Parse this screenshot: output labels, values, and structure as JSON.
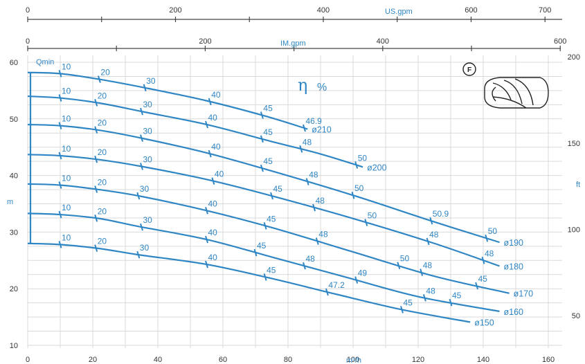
{
  "chart_data": {
    "type": "line",
    "xlabel": "m³/h",
    "ylabel": "m",
    "xlim": [
      0,
      160
    ],
    "ylim": [
      10,
      60
    ],
    "x_ticks": [
      0,
      20,
      40,
      60,
      80,
      100,
      120,
      140,
      160
    ],
    "y_ticks": [
      10,
      20,
      30,
      40,
      50,
      60
    ],
    "top_axis_usgpm": {
      "label": "US.gpm",
      "ticks": [
        "0",
        "200",
        "400",
        "600",
        "700"
      ]
    },
    "top_axis_imgpm": {
      "label": "IM.gpm",
      "ticks": [
        "0",
        "200",
        "400",
        "600"
      ]
    },
    "right_axis_ft": {
      "label": "ft",
      "ticks": [
        "50",
        "100",
        "150",
        "200"
      ]
    },
    "min_flow_label": "Qmin",
    "efficiency_label": "η",
    "efficiency_unit": "%",
    "pump_badge": "F",
    "grid": true,
    "series": [
      {
        "name": "ø210",
        "points": [
          [
            0,
            58.2
          ],
          [
            10,
            58.0
          ],
          [
            22,
            57.0
          ],
          [
            36,
            55.5
          ],
          [
            55,
            53.2
          ],
          [
            73,
            50.5
          ],
          [
            86,
            48.2
          ]
        ],
        "efficiency_marks": [
          [
            10,
            "10"
          ],
          [
            22,
            "20"
          ],
          [
            36,
            "30"
          ],
          [
            56,
            "40"
          ],
          [
            72,
            "45"
          ],
          [
            85,
            "46.9"
          ]
        ]
      },
      {
        "name": "ø200",
        "points": [
          [
            0,
            54.0
          ],
          [
            10,
            53.7
          ],
          [
            22,
            52.8
          ],
          [
            36,
            51.2
          ],
          [
            55,
            49.0
          ],
          [
            75,
            46.0
          ],
          [
            90,
            43.8
          ],
          [
            103,
            41.5
          ]
        ],
        "efficiency_marks": [
          [
            10,
            "10"
          ],
          [
            21,
            "20"
          ],
          [
            35,
            "30"
          ],
          [
            55,
            "40"
          ],
          [
            72,
            "45"
          ],
          [
            84,
            "48"
          ],
          [
            101,
            "50"
          ]
        ]
      },
      {
        "name": "ø190",
        "points": [
          [
            0,
            49.0
          ],
          [
            10,
            48.8
          ],
          [
            22,
            48.0
          ],
          [
            35,
            46.6
          ],
          [
            55,
            44.0
          ],
          [
            75,
            40.8
          ],
          [
            100,
            36.5
          ],
          [
            125,
            31.8
          ],
          [
            145,
            28.2
          ]
        ],
        "efficiency_marks": [
          [
            10,
            "10"
          ],
          [
            21,
            "20"
          ],
          [
            35,
            "30"
          ],
          [
            56,
            "40"
          ],
          [
            72,
            "45"
          ],
          [
            86,
            "48"
          ],
          [
            100,
            "50"
          ],
          [
            124,
            "50.9"
          ],
          [
            141,
            "50"
          ]
        ]
      },
      {
        "name": "ø180",
        "points": [
          [
            0,
            43.7
          ],
          [
            10,
            43.5
          ],
          [
            22,
            42.8
          ],
          [
            35,
            41.6
          ],
          [
            55,
            39.3
          ],
          [
            75,
            36.4
          ],
          [
            100,
            32.4
          ],
          [
            125,
            28.0
          ],
          [
            145,
            24.0
          ]
        ],
        "efficiency_marks": [
          [
            10,
            "10"
          ],
          [
            21,
            "20"
          ],
          [
            35,
            "30"
          ],
          [
            57,
            "40"
          ],
          [
            75,
            "45"
          ],
          [
            88,
            "48"
          ],
          [
            104,
            "50"
          ],
          [
            123,
            "48"
          ],
          [
            140,
            "48"
          ]
        ]
      },
      {
        "name": "ø170",
        "points": [
          [
            0,
            38.5
          ],
          [
            10,
            38.3
          ],
          [
            22,
            37.5
          ],
          [
            35,
            36.3
          ],
          [
            55,
            33.8
          ],
          [
            75,
            30.8
          ],
          [
            100,
            26.5
          ],
          [
            125,
            22.2
          ],
          [
            148,
            19.2
          ]
        ],
        "efficiency_marks": [
          [
            10,
            "10"
          ],
          [
            21,
            "20"
          ],
          [
            34,
            "30"
          ],
          [
            55,
            "40"
          ],
          [
            73,
            "45"
          ],
          [
            89,
            "48"
          ],
          [
            114,
            "50"
          ],
          [
            121,
            "48"
          ],
          [
            138,
            "45"
          ]
        ]
      },
      {
        "name": "ø160",
        "points": [
          [
            0,
            33.3
          ],
          [
            10,
            33.1
          ],
          [
            22,
            32.4
          ],
          [
            34,
            31.0
          ],
          [
            55,
            28.7
          ],
          [
            75,
            25.6
          ],
          [
            98,
            22.0
          ],
          [
            120,
            18.6
          ],
          [
            145,
            16.0
          ]
        ],
        "efficiency_marks": [
          [
            10,
            "10"
          ],
          [
            21,
            "20"
          ],
          [
            35,
            "30"
          ],
          [
            55,
            "40"
          ],
          [
            70,
            "45"
          ],
          [
            85,
            "48"
          ],
          [
            101,
            "49"
          ],
          [
            122,
            "48"
          ],
          [
            130,
            "45"
          ]
        ]
      },
      {
        "name": "ø150",
        "points": [
          [
            0,
            28.0
          ],
          [
            10,
            27.8
          ],
          [
            22,
            27.1
          ],
          [
            34,
            26.0
          ],
          [
            55,
            24.3
          ],
          [
            75,
            21.8
          ],
          [
            95,
            19.0
          ],
          [
            115,
            16.3
          ],
          [
            136,
            14.1
          ]
        ],
        "efficiency_marks": [
          [
            10,
            "10"
          ],
          [
            21,
            "20"
          ],
          [
            34,
            "30"
          ],
          [
            55,
            "40"
          ],
          [
            73,
            "45"
          ],
          [
            92,
            "47.2"
          ],
          [
            115,
            "45"
          ]
        ]
      }
    ]
  }
}
